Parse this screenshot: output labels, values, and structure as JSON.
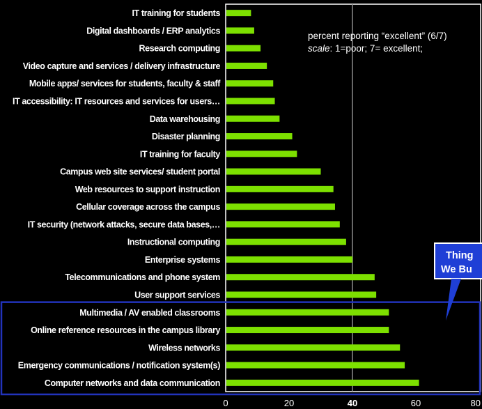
{
  "chart_data": {
    "type": "bar",
    "orientation": "horizontal",
    "categories": [
      "IT training for students",
      "Digital dashboards / ERP analytics",
      "Research computing",
      "Video capture and services / delivery infrastructure",
      "Mobile apps/ services for students, faculty & staff",
      "IT accessibility: IT resources and services for users…",
      "Data warehousing",
      "Disaster planning",
      "IT training for faculty",
      "Campus web site services/ student portal",
      "Web resources to support instruction",
      "Cellular coverage across the campus",
      "IT security (network attacks, secure data bases,…",
      "Instructional computing",
      "Enterprise systems",
      "Telecommunications and phone system",
      "User support services",
      "Multimedia / AV enabled classrooms",
      "Online reference resources in the campus library",
      "Wireless networks",
      "Emergency communications / notification system(s)",
      "Computer networks and data communication"
    ],
    "values": [
      8,
      9,
      11,
      13,
      15,
      15.5,
      17,
      21,
      22.5,
      30,
      34,
      34.5,
      36,
      38,
      40,
      47,
      47.5,
      51.5,
      51.5,
      55,
      56.5,
      61
    ],
    "xlim": [
      0,
      80
    ],
    "xticks": [
      "0",
      "20",
      "40",
      "60",
      "80"
    ],
    "reference_line": 40,
    "bar_color": "#7de000",
    "highlight_color": "#2233bb",
    "highlight_categories": [
      "Multimedia / AV enabled classrooms",
      "Online reference resources in the campus library",
      "Wireless networks",
      "Emergency communications / notification system(s)",
      "Computer networks and data communication"
    ],
    "annotation": {
      "line1": "percent reporting “excellent” (6/7)",
      "line2_italic": "scale",
      "line2_rest": ": 1=poor; 7= excellent;"
    },
    "callout": {
      "line1": "Thing",
      "line2": "We Bu"
    }
  }
}
